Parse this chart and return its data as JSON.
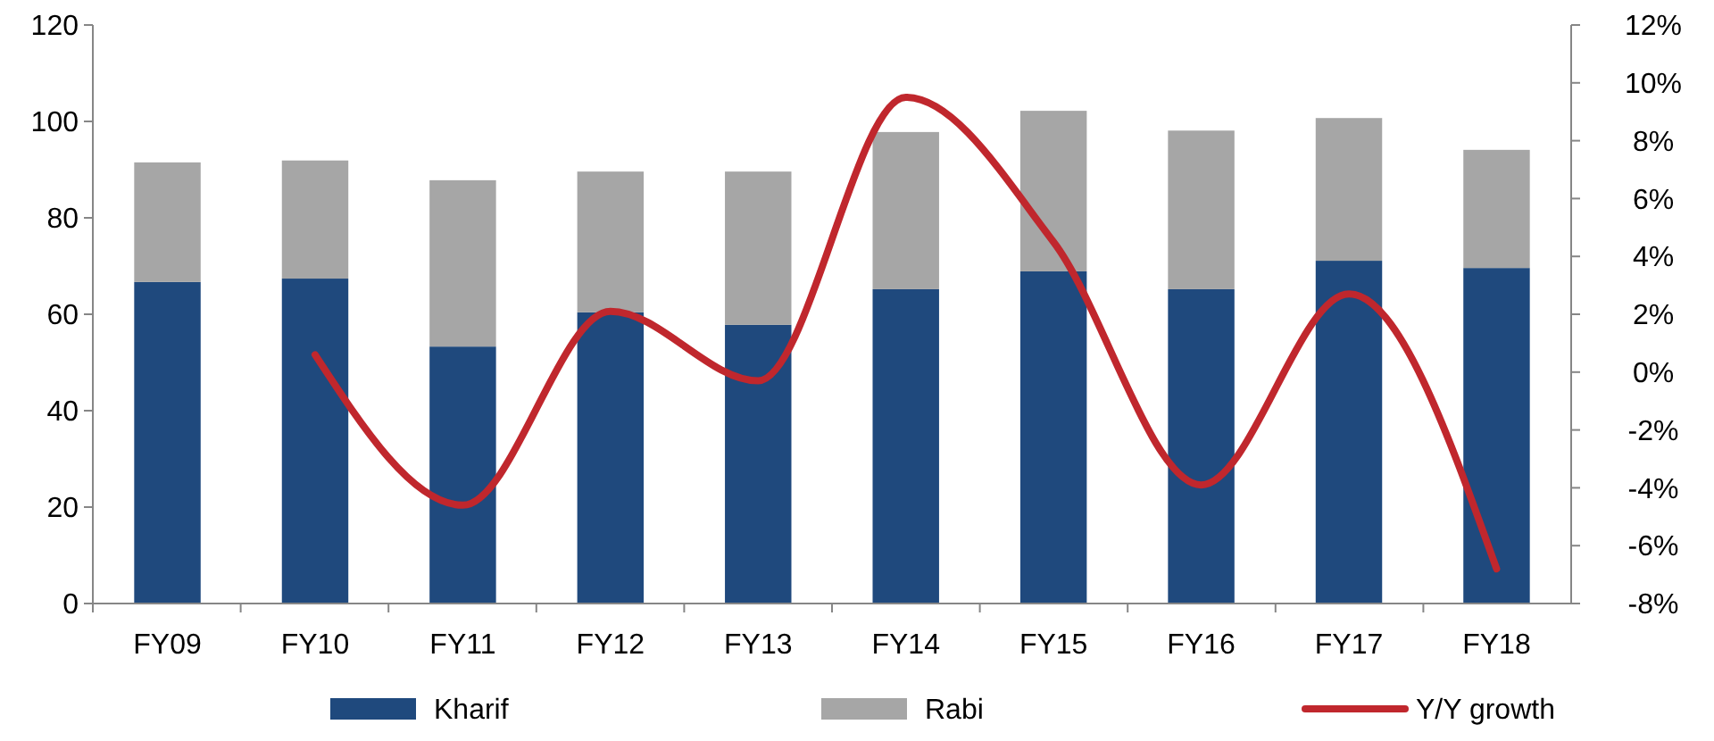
{
  "chart_data": {
    "type": "bar",
    "stacked": true,
    "categories": [
      "FY09",
      "FY10",
      "FY11",
      "FY12",
      "FY13",
      "FY14",
      "FY15",
      "FY16",
      "FY17",
      "FY18"
    ],
    "series": [
      {
        "name": "Kharif",
        "color": "#1f497d",
        "values": [
          66.7,
          67.4,
          53.3,
          60.4,
          57.8,
          65.2,
          68.9,
          65.2,
          71.1,
          69.6
        ]
      },
      {
        "name": "Rabi",
        "color": "#a6a6a6",
        "values": [
          24.8,
          24.5,
          34.5,
          29.2,
          31.8,
          32.6,
          33.3,
          32.9,
          29.6,
          24.5
        ]
      },
      {
        "name": "Y/Y growth",
        "type": "line",
        "axis": "y2",
        "color": "#c0272d",
        "values": [
          null,
          0.6,
          -4.6,
          2.1,
          -0.3,
          9.5,
          4.5,
          -3.9,
          2.7,
          -6.8
        ]
      }
    ],
    "ylim": [
      0,
      120
    ],
    "yticks": [
      0,
      20,
      40,
      60,
      80,
      100,
      120
    ],
    "y2lim": [
      -8,
      12
    ],
    "y2ticks": [
      {
        "value": -8,
        "label": "-8%"
      },
      {
        "value": -6,
        "label": "-6%"
      },
      {
        "value": -4,
        "label": "-4%"
      },
      {
        "value": -2,
        "label": "-2%"
      },
      {
        "value": 0,
        "label": "0%"
      },
      {
        "value": 2,
        "label": "2%"
      },
      {
        "value": 4,
        "label": "4%"
      },
      {
        "value": 6,
        "label": "6%"
      },
      {
        "value": 8,
        "label": "8%"
      },
      {
        "value": 10,
        "label": "10%"
      },
      {
        "value": 12,
        "label": "12%"
      }
    ],
    "grid": false,
    "legend": "bottom"
  }
}
